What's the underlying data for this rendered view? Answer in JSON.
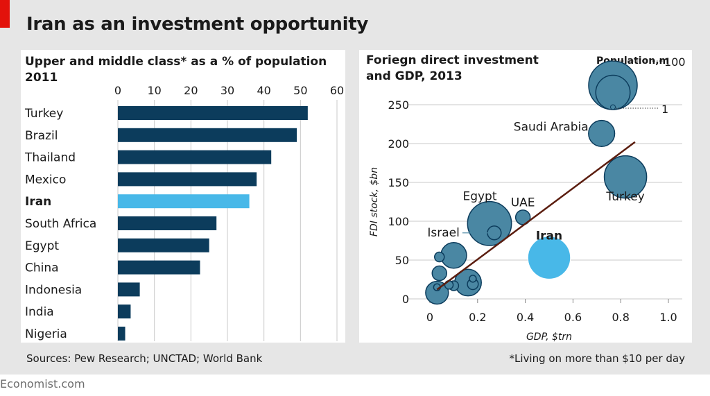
{
  "header": {
    "title": "Iran as an investment opportunity"
  },
  "colors": {
    "dark_bar": "#0c3c5c",
    "highlight": "#48b8e8",
    "bubble": "#4a87a3",
    "bubble_stroke": "#0c3c5c",
    "trend": "#5b1d0f",
    "brand_red": "#e3120b"
  },
  "footer": {
    "sources": "Sources: Pew Research; UNCTAD; World Bank",
    "note": "*Living on more than $10 per day",
    "brand": "Economist.com"
  },
  "chart_data": [
    {
      "type": "bar",
      "orientation": "horizontal",
      "title": "Upper and middle class* as a % of population",
      "subtitle": "2011",
      "categories": [
        "Turkey",
        "Brazil",
        "Thailand",
        "Mexico",
        "Iran",
        "South Africa",
        "Egypt",
        "China",
        "Indonesia",
        "India",
        "Nigeria"
      ],
      "values": [
        52,
        49,
        42,
        38,
        36,
        27,
        25,
        22.5,
        6,
        3.5,
        2
      ],
      "highlight": "Iran",
      "xlim": [
        0,
        60
      ],
      "xticks": [
        "0",
        "10",
        "20",
        "30",
        "40",
        "50",
        "60"
      ],
      "grid": true
    },
    {
      "type": "scatter",
      "title": "Foriegn direct investment",
      "subtitle": "and GDP, 2013",
      "xlabel": "GDP, $trn",
      "ylabel": "FDI stock, $bn",
      "xlim": [
        0,
        1.0
      ],
      "ylim": [
        0,
        250
      ],
      "xticks": [
        "0",
        "0.2",
        "0.4",
        "0.6",
        "0.8",
        "1.0"
      ],
      "yticks": [
        "0",
        "50",
        "100",
        "150",
        "200",
        "250"
      ],
      "grid": true,
      "legend": {
        "title": "Population,m",
        "max_label": "100",
        "min_label": "1"
      },
      "trendline": {
        "x": [
          0.03,
          0.86
        ],
        "y": [
          12,
          202
        ]
      },
      "points": [
        {
          "label": "Saudi Arabia",
          "gdp": 0.72,
          "fdi": 213,
          "pop": 29
        },
        {
          "label": "Turkey",
          "gdp": 0.82,
          "fdi": 157,
          "pop": 76
        },
        {
          "label": "Egypt",
          "gdp": 0.25,
          "fdi": 97,
          "pop": 82
        },
        {
          "label": "UAE",
          "gdp": 0.39,
          "fdi": 105,
          "pop": 9
        },
        {
          "label": "Israel",
          "gdp": 0.27,
          "fdi": 85,
          "pop": 8
        },
        {
          "label": "Iran",
          "gdp": 0.5,
          "fdi": 53,
          "pop": 77,
          "highlight": true
        },
        {
          "label": "",
          "gdp": 0.1,
          "fdi": 56,
          "pop": 28
        },
        {
          "label": "",
          "gdp": 0.04,
          "fdi": 54,
          "pop": 4
        },
        {
          "label": "",
          "gdp": 0.04,
          "fdi": 33,
          "pop": 9
        },
        {
          "label": "",
          "gdp": 0.16,
          "fdi": 21,
          "pop": 30
        },
        {
          "label": "",
          "gdp": 0.18,
          "fdi": 26,
          "pop": 2
        },
        {
          "label": "",
          "gdp": 0.18,
          "fdi": 19,
          "pop": 5
        },
        {
          "label": "",
          "gdp": 0.08,
          "fdi": 18,
          "pop": 3
        },
        {
          "label": "",
          "gdp": 0.1,
          "fdi": 17,
          "pop": 4
        },
        {
          "label": "",
          "gdp": 0.03,
          "fdi": 15,
          "pop": 2
        },
        {
          "label": "",
          "gdp": 0.03,
          "fdi": 8,
          "pop": 22
        }
      ]
    }
  ]
}
